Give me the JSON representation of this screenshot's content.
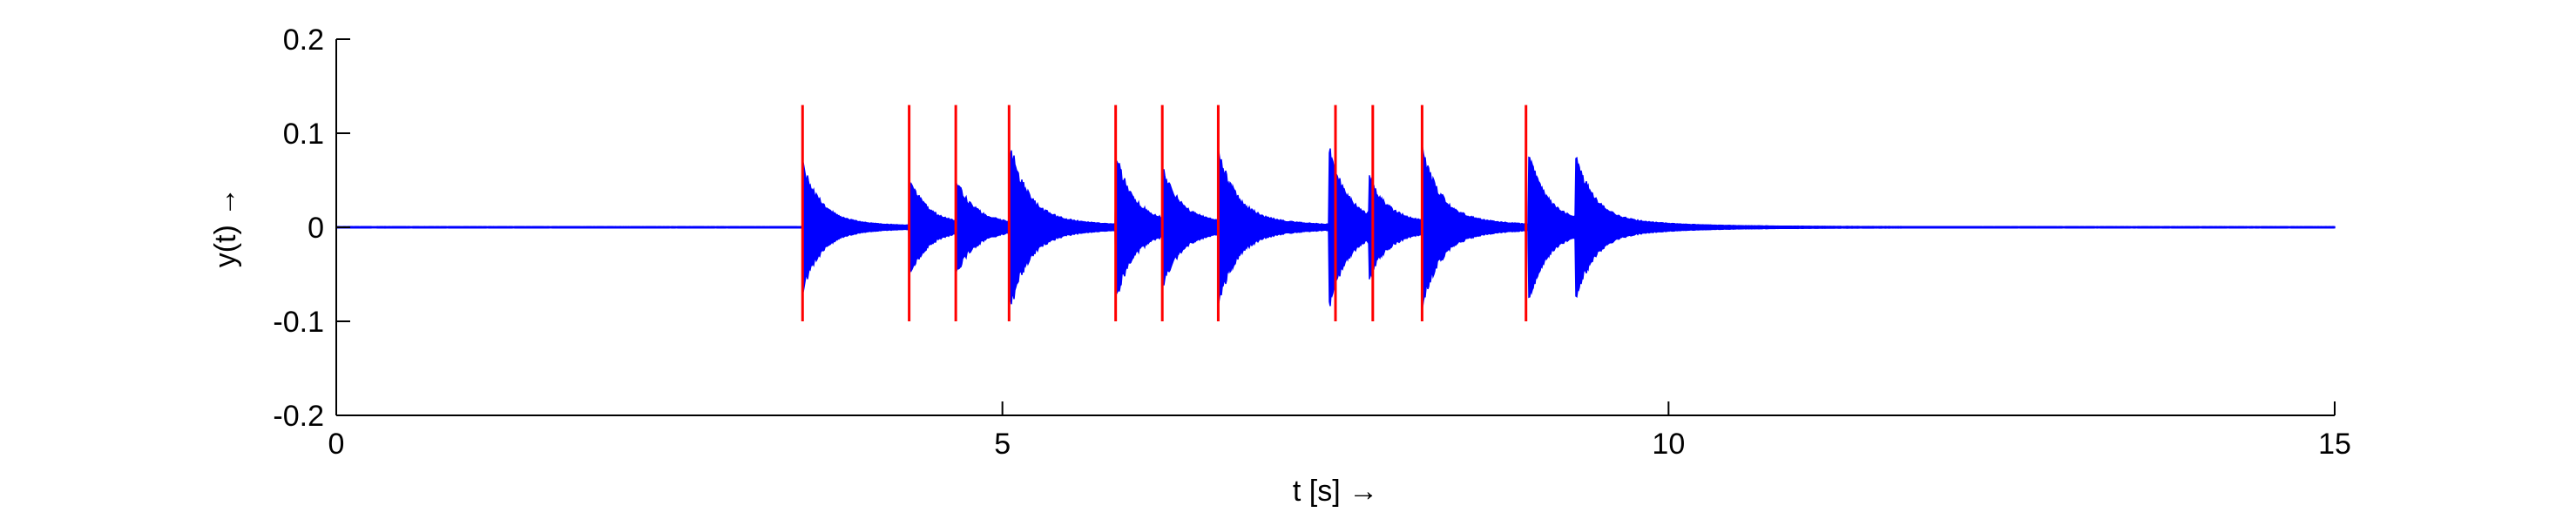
{
  "chart_data": {
    "type": "line",
    "title": "",
    "xlabel": "t [s] →",
    "ylabel": "y(t)  →",
    "xlim": [
      0,
      15
    ],
    "ylim": [
      -0.2,
      0.2
    ],
    "xticks": [
      0,
      5,
      10,
      15
    ],
    "xtick_labels": [
      "0",
      "5",
      "10",
      "15"
    ],
    "yticks": [
      0.2,
      0.1,
      0,
      -0.1,
      -0.2
    ],
    "ytick_labels": [
      "0.2",
      "0.1",
      "0",
      "-0.1",
      "-0.2"
    ],
    "grid": false,
    "legend": "none",
    "series": [
      {
        "kind": "decaying-signal",
        "color": "#0000ff",
        "bursts": [
          {
            "t": 3.5,
            "amp": 0.065
          },
          {
            "t": 4.3,
            "amp": 0.048
          },
          {
            "t": 4.65,
            "amp": 0.042
          },
          {
            "t": 5.05,
            "amp": 0.082
          },
          {
            "t": 5.85,
            "amp": 0.07
          },
          {
            "t": 6.2,
            "amp": 0.05
          },
          {
            "t": 6.62,
            "amp": 0.072
          },
          {
            "t": 7.45,
            "amp": 0.078
          },
          {
            "t": 7.75,
            "amp": 0.04
          },
          {
            "t": 8.15,
            "amp": 0.075
          },
          {
            "t": 8.95,
            "amp": 0.072
          },
          {
            "t": 9.3,
            "amp": 0.065
          }
        ]
      },
      {
        "kind": "onset-markers",
        "color": "#ff0000",
        "x": [
          3.5,
          4.3,
          4.65,
          5.05,
          5.85,
          6.2,
          6.62,
          7.5,
          7.78,
          8.15,
          8.93
        ],
        "y_range": [
          -0.1,
          0.13
        ]
      }
    ]
  }
}
